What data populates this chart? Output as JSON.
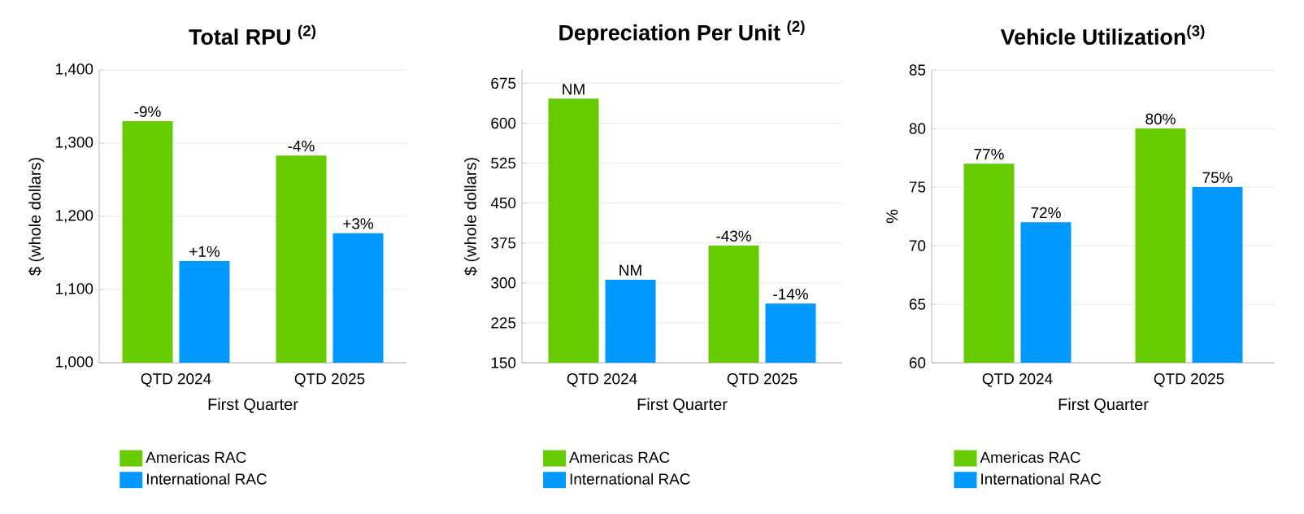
{
  "chart_data": [
    {
      "type": "bar",
      "title": "Total RPU $^{(2)}$",
      "xlabel": "First Quarter",
      "ylabel": "$ (whole dollars)",
      "categories": [
        "QTD 2024",
        "QTD 2025"
      ],
      "series": [
        {
          "name": "Americas RAC",
          "color": "#66cc00",
          "values": [
            1330,
            1283
          ]
        },
        {
          "name": "International RAC",
          "color": "#0099ff",
          "values": [
            1139,
            1177
          ]
        }
      ],
      "annotations": [
        {
          "text": "-9%",
          "x": "QTD 2024",
          "y": 1330
        },
        {
          "text": "-4%",
          "x": "QTD 2025",
          "y": 1283
        },
        {
          "text": "+1%",
          "x": "QTD 2024",
          "y": 1139
        },
        {
          "text": "+3%",
          "x": "QTD 2025",
          "y": 1177
        }
      ],
      "ylim": [
        1000,
        1400
      ],
      "yticks": [
        {
          "value": 1000,
          "label": "1,000"
        },
        {
          "value": 1100,
          "label": "1,100"
        },
        {
          "value": 1200,
          "label": "1,200"
        },
        {
          "value": 1300,
          "label": "1,300"
        },
        {
          "value": 1400,
          "label": "1,400"
        }
      ],
      "grid": "y",
      "legend": "bottom"
    },
    {
      "type": "bar",
      "title": "Depreciation Per Unit $^{(2)}$",
      "xlabel": "First Quarter",
      "ylabel": "$ (whole dollars)",
      "categories": [
        "QTD 2024",
        "QTD 2025"
      ],
      "series": [
        {
          "name": "Americas RAC",
          "color": "#66cc00",
          "values": [
            646,
            370
          ]
        },
        {
          "name": "International RAC",
          "color": "#0099ff",
          "values": [
            306,
            261
          ]
        }
      ],
      "annotations": [
        {
          "text": "NM",
          "x": "QTD 2024",
          "y": 646
        },
        {
          "text": "-43%",
          "x": "QTD 2025",
          "y": 370
        },
        {
          "text": "NM",
          "x": "QTD 2024",
          "y": 306
        },
        {
          "text": "-14%",
          "x": "QTD 2025",
          "y": 261
        }
      ],
      "ylim": [
        150,
        700
      ],
      "yticks": [
        150,
        225,
        300,
        375,
        450,
        525,
        600,
        675
      ],
      "grid": "y",
      "legend": "bottom"
    },
    {
      "type": "bar",
      "title": "Vehicle Utilization$^{(3)}$",
      "xlabel": "First Quarter",
      "ylabel": "%",
      "categories": [
        "QTD 2024",
        "QTD 2025"
      ],
      "series": [
        {
          "name": "Americas RAC",
          "color": "#66cc00",
          "values": [
            77,
            80
          ],
          "value_labels": [
            "77%",
            "80%"
          ]
        },
        {
          "name": "International RAC",
          "color": "#0099ff",
          "values": [
            72,
            75
          ],
          "value_labels": [
            "72%",
            "75%"
          ]
        }
      ],
      "ylim": [
        60,
        85
      ],
      "yticks": [
        60,
        65,
        70,
        75,
        80,
        85
      ],
      "grid": "y",
      "legend": "bottom"
    }
  ]
}
